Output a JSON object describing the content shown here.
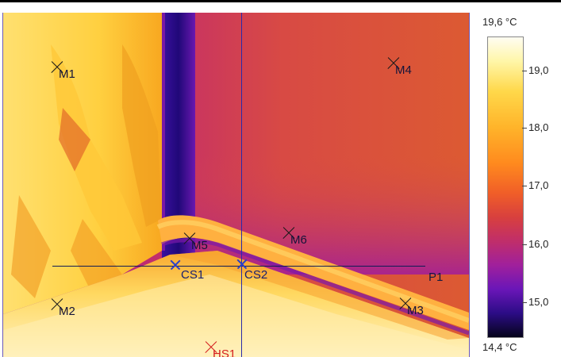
{
  "scale": {
    "max_label": "19,6 °C",
    "min_label": "14,4 °C",
    "ticks": [
      "19,0",
      "18,0",
      "17,0",
      "16,0",
      "15,0"
    ]
  },
  "markers": {
    "m1": "M1",
    "m2": "M2",
    "m3": "M3",
    "m4": "M4",
    "m5": "M5",
    "m6": "M6",
    "hs1": "HS1"
  },
  "cursors": {
    "cs1": "CS1",
    "cs2": "CS2",
    "p1": "P1"
  },
  "colors": {
    "wall_warm": "#d8503a",
    "wall_cool": "#9a1c9c",
    "floor_hot": "#ffd24a",
    "corner_cold": "#2a0c84"
  }
}
